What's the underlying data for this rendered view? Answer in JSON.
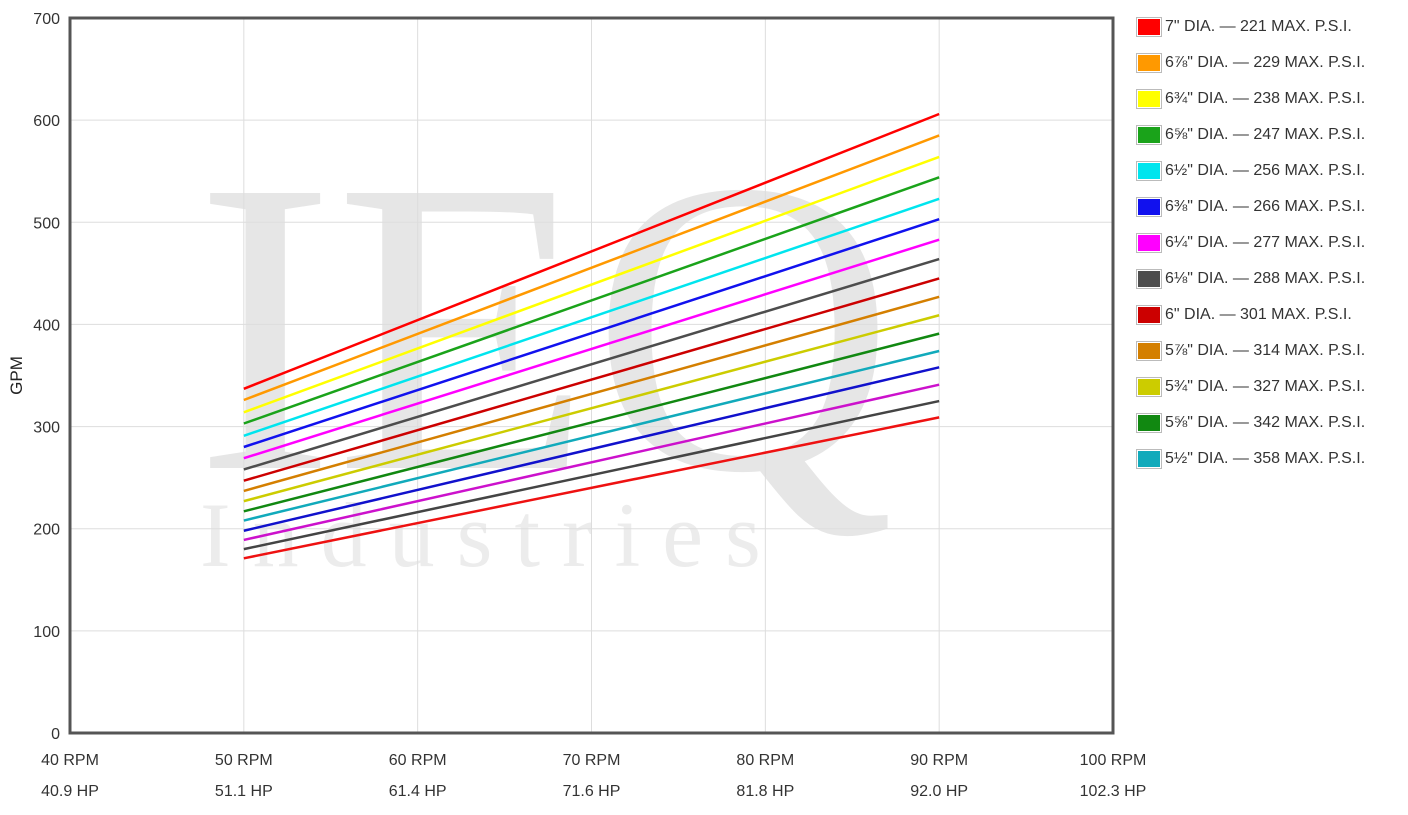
{
  "chart_data": {
    "type": "line",
    "xlabel": "",
    "ylabel": "GPM",
    "xlim": [
      40,
      100
    ],
    "ylim": [
      0,
      700
    ],
    "x_ticks": [
      {
        "rpm": "40 RPM",
        "hp": "40.9 HP"
      },
      {
        "rpm": "50 RPM",
        "hp": "51.1 HP"
      },
      {
        "rpm": "60 RPM",
        "hp": "61.4 HP"
      },
      {
        "rpm": "70 RPM",
        "hp": "71.6 HP"
      },
      {
        "rpm": "80 RPM",
        "hp": "81.8 HP"
      },
      {
        "rpm": "90 RPM",
        "hp": "92.0 HP"
      },
      {
        "rpm": "100 RPM",
        "hp": "102.3 HP"
      }
    ],
    "y_ticks": [
      "0",
      "100",
      "200",
      "300",
      "400",
      "500",
      "600",
      "700"
    ],
    "grid": true,
    "legend_position": "right",
    "watermark": {
      "logo": "IEQ",
      "text": "Industries"
    },
    "x": [
      50,
      90
    ],
    "series": [
      {
        "name": "7\" DIA. — 221 MAX. P.S.I.",
        "color": "#ff0000",
        "values": [
          337,
          606
        ]
      },
      {
        "name": "6⅞\" DIA. — 229 MAX. P.S.I.",
        "color": "#ff9900",
        "values": [
          326,
          585
        ]
      },
      {
        "name": "6¾\" DIA. — 238 MAX. P.S.I.",
        "color": "#ffff00",
        "values": [
          314,
          564
        ]
      },
      {
        "name": "6⅝\" DIA. — 247 MAX. P.S.I.",
        "color": "#1aa31a",
        "values": [
          303,
          544
        ]
      },
      {
        "name": "6½\" DIA. — 256 MAX. P.S.I.",
        "color": "#00e5ee",
        "values": [
          291,
          523
        ]
      },
      {
        "name": "6⅜\" DIA. — 266 MAX. P.S.I.",
        "color": "#1111ee",
        "values": [
          280,
          503
        ]
      },
      {
        "name": "6¼\" DIA. — 277 MAX. P.S.I.",
        "color": "#ff00ff",
        "values": [
          269,
          483
        ]
      },
      {
        "name": "6⅛\" DIA. — 288 MAX. P.S.I.",
        "color": "#4d4d4d",
        "values": [
          258,
          464
        ]
      },
      {
        "name": "6\" DIA. — 301 MAX. P.S.I.",
        "color": "#cc0000",
        "values": [
          247,
          445
        ]
      },
      {
        "name": "5⅞\" DIA. — 314 MAX. P.S.I.",
        "color": "#d47f00",
        "values": [
          237,
          427
        ]
      },
      {
        "name": "5¾\" DIA. — 327 MAX. P.S.I.",
        "color": "#cccc00",
        "values": [
          227,
          409
        ]
      },
      {
        "name": "5⅝\" DIA. — 342 MAX. P.S.I.",
        "color": "#118811",
        "values": [
          217,
          391
        ]
      },
      {
        "name": "5½\" DIA. — 358 MAX. P.S.I.",
        "color": "#11aabb",
        "values": [
          208,
          374
        ]
      },
      {
        "name": "",
        "color": "#1111cc",
        "values": [
          198,
          358
        ]
      },
      {
        "name": "",
        "color": "#cc11cc",
        "values": [
          189,
          341
        ]
      },
      {
        "name": "",
        "color": "#444444",
        "values": [
          180,
          325
        ]
      },
      {
        "name": "",
        "color": "#ee1111",
        "values": [
          171,
          309
        ]
      }
    ]
  }
}
